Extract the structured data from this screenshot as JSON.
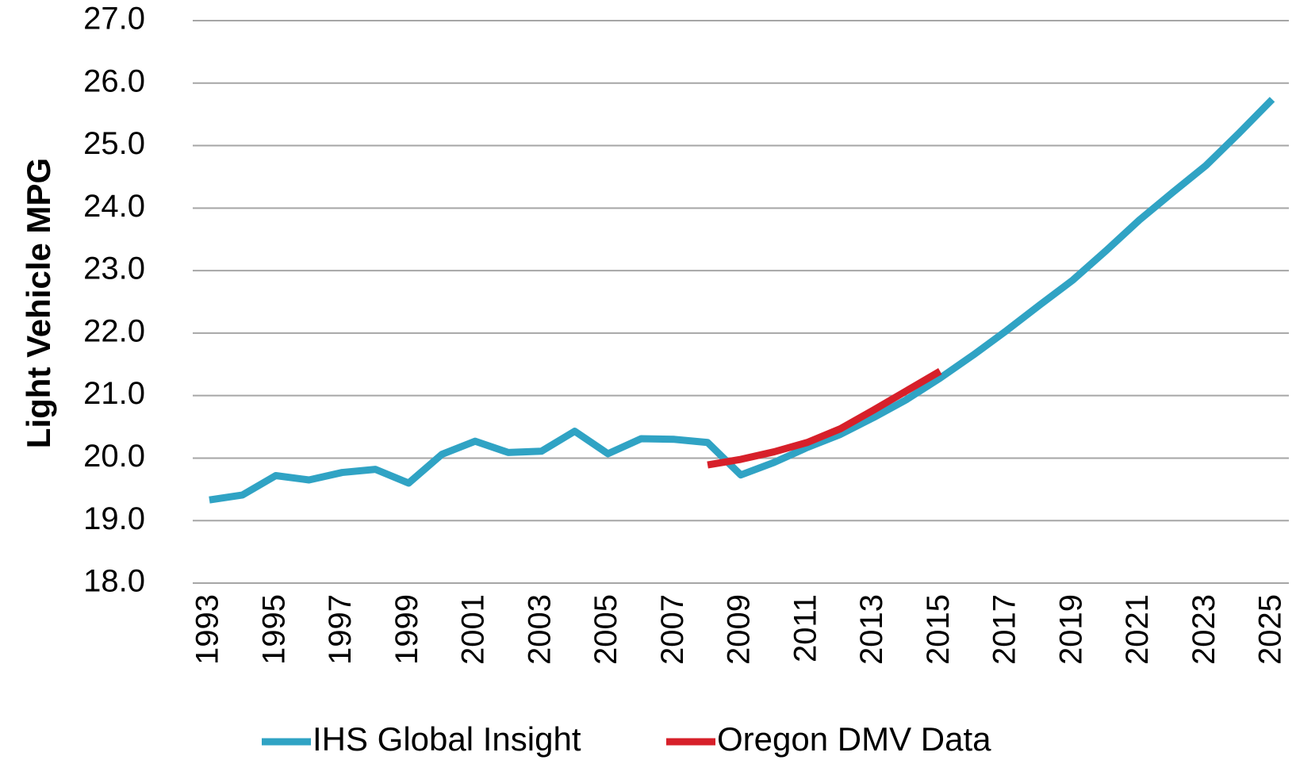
{
  "chart_data": {
    "type": "line",
    "y_label": "Light Vehicle MPG",
    "categories": [
      "1993",
      null,
      "1995",
      null,
      "1997",
      null,
      "1999",
      null,
      "2001",
      null,
      "2003",
      null,
      "2005",
      null,
      "2007",
      null,
      "2009",
      null,
      "2011",
      null,
      "2013",
      null,
      "2015",
      null,
      "2017",
      null,
      "2019",
      null,
      "2021",
      null,
      "2023",
      null,
      "2025"
    ],
    "series": [
      {
        "name": "IHS Global Insight",
        "color": "#30a3c4",
        "values": [
          19.33,
          19.41,
          19.72,
          19.65,
          19.77,
          19.82,
          19.6,
          20.06,
          20.27,
          20.09,
          20.11,
          20.43,
          20.07,
          20.31,
          20.3,
          20.25,
          19.73,
          19.93,
          20.17,
          20.38,
          20.65,
          20.94,
          21.28,
          21.65,
          22.04,
          22.45,
          22.85,
          23.32,
          23.81,
          24.25,
          24.68,
          25.2,
          25.74
        ]
      },
      {
        "name": "Oregon DMV Data",
        "color": "#d7202a",
        "values": [
          null,
          null,
          null,
          null,
          null,
          null,
          null,
          null,
          null,
          null,
          null,
          null,
          null,
          null,
          null,
          19.89,
          19.98,
          20.1,
          20.25,
          20.47,
          20.77,
          21.08,
          21.39,
          null,
          null,
          null,
          null,
          null,
          null,
          null,
          null,
          null,
          null
        ]
      }
    ],
    "ylim": [
      18,
      27
    ],
    "yticks": [
      {
        "value": 18,
        "label": "18.0"
      },
      {
        "value": 19,
        "label": "19.0"
      },
      {
        "value": 20,
        "label": "20.0"
      },
      {
        "value": 21,
        "label": "21.0"
      },
      {
        "value": 22,
        "label": "22.0"
      },
      {
        "value": 23,
        "label": "23.0"
      },
      {
        "value": 24,
        "label": "24.0"
      },
      {
        "value": 25,
        "label": "25.0"
      },
      {
        "value": 26,
        "label": "26.0"
      },
      {
        "value": 27,
        "label": "27.0"
      }
    ],
    "grid": true,
    "legend": "bottom"
  }
}
